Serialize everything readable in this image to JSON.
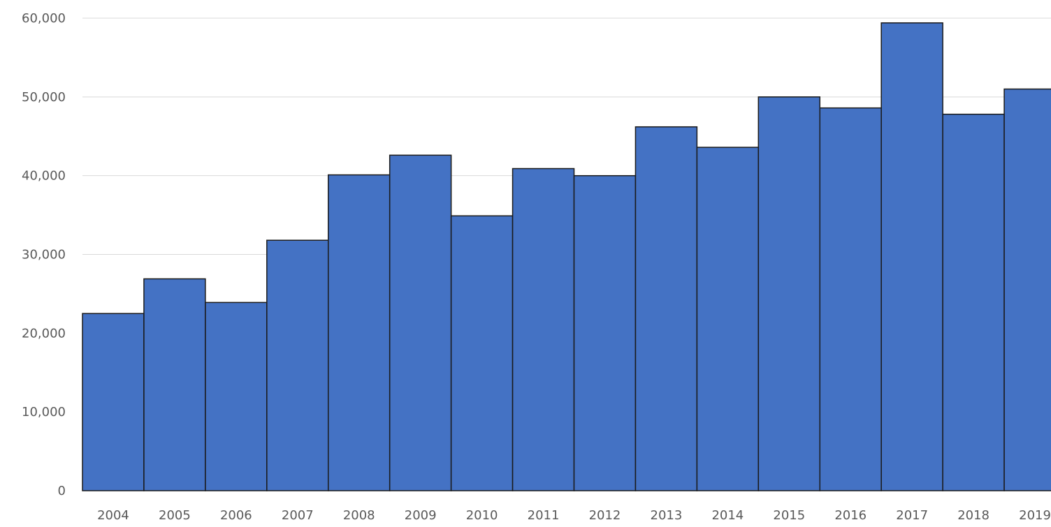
{
  "chart_data": {
    "type": "bar",
    "title": "",
    "xlabel": "",
    "ylabel": "",
    "categories": [
      "2004",
      "2005",
      "2006",
      "2007",
      "2008",
      "2009",
      "2010",
      "2011",
      "2012",
      "2013",
      "2014",
      "2015",
      "2016",
      "2017",
      "2018",
      "2019"
    ],
    "values": [
      22500,
      26900,
      23900,
      31800,
      40100,
      42600,
      34900,
      40900,
      40000,
      46200,
      43600,
      50000,
      48600,
      59400,
      47800,
      51000
    ],
    "ylim": [
      0,
      60000
    ],
    "yticks": [
      0,
      10000,
      20000,
      30000,
      40000,
      50000,
      60000
    ],
    "ytick_labels": [
      "0",
      "10,000",
      "20,000",
      "30,000",
      "40,000",
      "50,000",
      "60,000"
    ],
    "grid": true,
    "legend": "none",
    "colors": {
      "bar_fill": "#4472C4",
      "bar_stroke": "#1a1a1a",
      "grid": "#d9d9d9",
      "tick_text": "#595959"
    }
  }
}
